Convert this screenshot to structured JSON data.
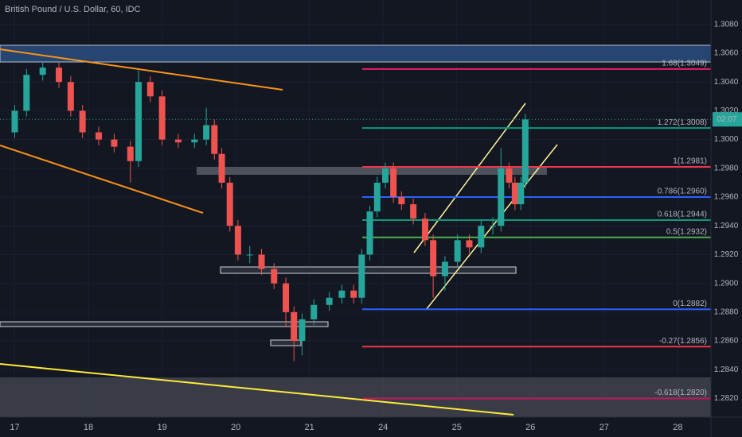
{
  "chart_data": {
    "type": "candlestick",
    "title": "British Pound / U.S. Dollar, 60, IDC",
    "x": [
      0.0,
      0.16,
      0.38,
      0.6,
      0.76,
      0.92,
      1.14,
      1.35,
      1.57,
      1.68,
      1.84,
      2.0,
      2.22,
      2.44,
      2.6,
      2.71,
      2.81,
      2.92,
      3.03,
      3.19,
      3.35,
      3.52,
      3.68,
      3.79,
      3.9,
      4.06,
      4.27,
      4.44,
      4.6,
      4.71,
      4.82,
      4.92,
      5.03,
      5.14,
      5.25,
      5.41,
      5.57,
      5.68,
      5.84,
      6.01,
      6.17,
      6.33,
      6.49,
      6.6,
      6.71,
      6.79,
      6.87,
      6.93
    ],
    "open": [
      1.3005,
      1.302,
      1.3045,
      1.305,
      1.304,
      1.302,
      1.3005,
      1.3,
      1.2995,
      1.2985,
      1.304,
      1.303,
      1.3,
      1.2998,
      1.3,
      1.301,
      1.299,
      1.297,
      1.294,
      1.292,
      1.292,
      1.291,
      1.29,
      1.288,
      1.286,
      1.2875,
      1.2885,
      1.289,
      1.2895,
      1.289,
      1.292,
      1.295,
      1.297,
      1.298,
      1.296,
      1.2955,
      1.2945,
      1.293,
      1.2905,
      1.2915,
      1.293,
      1.2925,
      1.294,
      1.294,
      1.298,
      1.297,
      1.2955,
      1.297
    ],
    "high": [
      1.3024,
      1.3049,
      1.3054,
      1.3054,
      1.3044,
      1.3024,
      1.3009,
      1.3004,
      1.2999,
      1.3048,
      1.3044,
      1.3034,
      1.3004,
      1.3004,
      1.3022,
      1.3014,
      1.2994,
      1.2974,
      1.2944,
      1.2926,
      1.2924,
      1.2914,
      1.2904,
      1.2884,
      1.2879,
      1.2889,
      1.2894,
      1.2899,
      1.2899,
      1.2924,
      1.2954,
      1.2974,
      1.2984,
      1.2984,
      1.2964,
      1.2959,
      1.2949,
      1.2934,
      1.2919,
      1.2934,
      1.2934,
      1.2944,
      1.2946,
      1.2994,
      1.2984,
      1.2974,
      1.2974,
      1.3018
    ],
    "low": [
      1.3001,
      1.3016,
      1.3041,
      1.3036,
      1.3016,
      1.3001,
      1.2996,
      1.2991,
      1.297,
      1.2981,
      1.3026,
      1.2996,
      1.2994,
      1.2994,
      1.2996,
      1.2986,
      1.2966,
      1.2936,
      1.2916,
      1.2914,
      1.2906,
      1.2896,
      1.287,
      1.2846,
      1.285,
      1.2871,
      1.2881,
      1.2886,
      1.2886,
      1.2886,
      1.2916,
      1.2946,
      1.2966,
      1.2956,
      1.2951,
      1.2941,
      1.2926,
      1.289,
      1.2895,
      1.2911,
      1.2921,
      1.2921,
      1.2934,
      1.2936,
      1.2966,
      1.2951,
      1.2951,
      1.2966
    ],
    "close": [
      1.302,
      1.3045,
      1.305,
      1.304,
      1.302,
      1.3005,
      1.3,
      1.2995,
      1.2985,
      1.304,
      1.303,
      1.3,
      1.2998,
      1.3,
      1.301,
      1.299,
      1.297,
      1.294,
      1.292,
      1.292,
      1.291,
      1.29,
      1.288,
      1.286,
      1.2875,
      1.2885,
      1.289,
      1.2895,
      1.289,
      1.292,
      1.295,
      1.297,
      1.298,
      1.296,
      1.2955,
      1.2945,
      1.293,
      1.2905,
      1.2915,
      1.293,
      1.2925,
      1.294,
      1.294,
      1.298,
      1.297,
      1.2955,
      1.297,
      1.3014
    ],
    "up_color": "#26a69a",
    "down_color": "#ef5350",
    "xlim": [
      -0.2,
      9.45
    ],
    "xticks": [
      {
        "value": 0,
        "label": "17"
      },
      {
        "value": 1,
        "label": "18"
      },
      {
        "value": 2,
        "label": "19"
      },
      {
        "value": 3,
        "label": "20"
      },
      {
        "value": 4,
        "label": "21"
      },
      {
        "value": 5,
        "label": "24"
      },
      {
        "value": 6,
        "label": "25"
      },
      {
        "value": 7,
        "label": "26"
      },
      {
        "value": 8,
        "label": "27"
      },
      {
        "value": 9,
        "label": "28"
      }
    ],
    "ylim": [
      1.2807,
      1.3097
    ],
    "yticks": [
      {
        "value": 1.308,
        "label": "1.3080"
      },
      {
        "value": 1.306,
        "label": "1.3060"
      },
      {
        "value": 1.304,
        "label": "1.3040"
      },
      {
        "value": 1.302,
        "label": "1.3020"
      },
      {
        "value": 1.3,
        "label": "1.3000"
      },
      {
        "value": 1.298,
        "label": "1.2980"
      },
      {
        "value": 1.296,
        "label": "1.2960"
      },
      {
        "value": 1.294,
        "label": "1.2940"
      },
      {
        "value": 1.292,
        "label": "1.2920"
      },
      {
        "value": 1.29,
        "label": "1.2900"
      },
      {
        "value": 1.288,
        "label": "1.2880"
      },
      {
        "value": 1.286,
        "label": "1.2860"
      },
      {
        "value": 1.284,
        "label": "1.2840"
      },
      {
        "value": 1.282,
        "label": "1.2820"
      }
    ],
    "grid": true,
    "levels": [
      {
        "label": "1.68(1.3049)",
        "value": 1.3049,
        "color": "#e91e63"
      },
      {
        "label": "1.272(1.3008)",
        "value": 1.3008,
        "color": "#089981"
      },
      {
        "label": "1(1.2981)",
        "value": 1.2981,
        "color": "#f23645"
      },
      {
        "label": "0.786(1.2960)",
        "value": 1.296,
        "color": "#2962ff"
      },
      {
        "label": "0.618(1.2944)",
        "value": 1.2944,
        "color": "#089981"
      },
      {
        "label": "0.5(1.2932)",
        "value": 1.2932,
        "color": "#4caf50"
      },
      {
        "label": "0(1.2882)",
        "value": 1.2882,
        "color": "#2962ff"
      },
      {
        "label": "-0.27(1.2856)",
        "value": 1.2856,
        "color": "#f23645"
      },
      {
        "label": "-0.618(1.2820)",
        "value": 1.282,
        "color": "#c2185b"
      }
    ],
    "countdown": "02:07",
    "countdown_color": "#26a69a"
  }
}
